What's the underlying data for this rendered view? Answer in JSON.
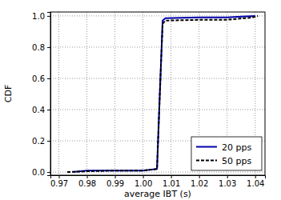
{
  "chart_data": {
    "type": "line",
    "x_label": "average IBT (s)",
    "y_label": "CDF",
    "xlim": [
      0.967,
      1.0435
    ],
    "ylim": [
      -0.02,
      1.025
    ],
    "xticks": [
      0.97,
      0.98,
      0.99,
      {
        "value": 1.0,
        "label": "1.00"
      },
      1.01,
      1.02,
      1.03,
      1.04
    ],
    "yticks": [
      {
        "value": 0,
        "label": "0.0"
      },
      {
        "value": 0.2,
        "label": "0.2"
      },
      {
        "value": 0.4,
        "label": "0.4"
      },
      {
        "value": 0.6,
        "label": "0.6"
      },
      {
        "value": 0.8,
        "label": "0.8"
      },
      {
        "value": 1.0,
        "label": "1.0"
      }
    ],
    "grid": true,
    "legend": "lower right",
    "series": [
      {
        "name": "20 pps",
        "color": "#0000aa",
        "line_style": "solid",
        "x": [
          0.975,
          0.98,
          0.99,
          1.0,
          1.005,
          1.006,
          1.007,
          1.008,
          1.02,
          1.03,
          1.035,
          1.04
        ],
        "values": [
          0,
          0.01,
          0.01,
          0.01,
          0.02,
          0.5,
          0.97,
          0.985,
          0.99,
          0.99,
          0.995,
          1.0
        ]
      },
      {
        "name": "50 pps",
        "color": "#000000",
        "line_style": "dashed",
        "x": [
          0.973,
          0.98,
          0.99,
          1.0,
          1.005,
          1.006,
          1.007,
          1.008,
          1.02,
          1.03,
          1.039,
          1.041
        ],
        "values": [
          0,
          0.005,
          0.01,
          0.01,
          0.02,
          0.5,
          0.95,
          0.97,
          0.975,
          0.975,
          0.99,
          1.0
        ]
      }
    ]
  }
}
